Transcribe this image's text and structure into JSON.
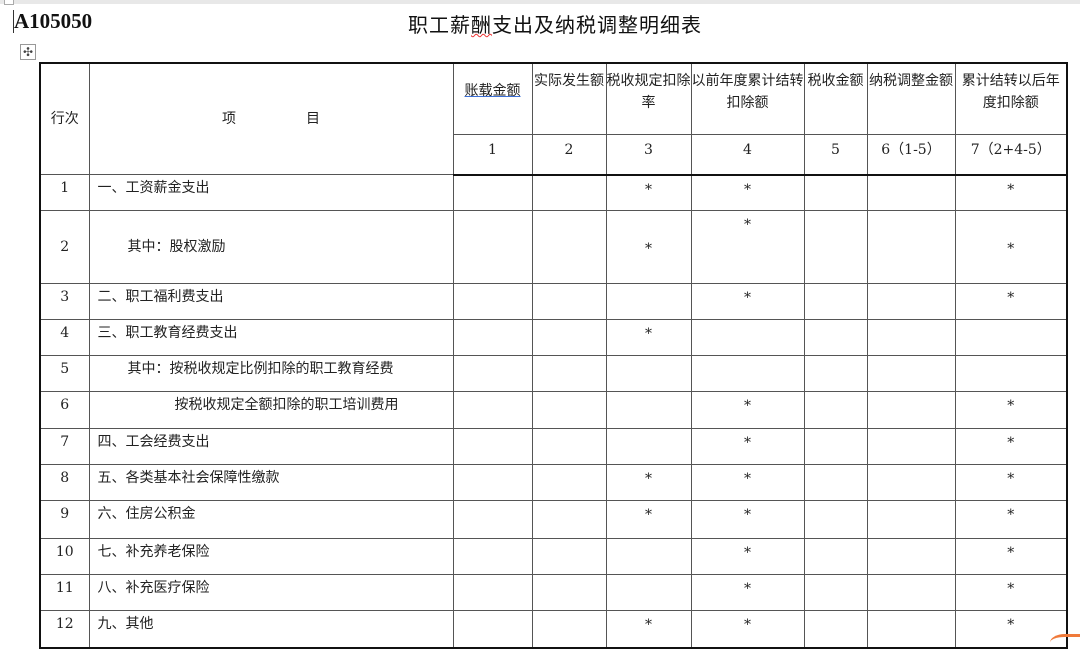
{
  "doc": {
    "code": "A105050",
    "title_pre": "职工薪",
    "title_err": "酬",
    "title_post": "支出及纳税调整明细表",
    "move_handle": "✣"
  },
  "headers": {
    "row_no": "行次",
    "item": "项　　　　　目",
    "cols": [
      "账载金额",
      "实际发生额",
      "税收规定扣除率",
      "以前年度累计结转扣除额",
      "税收金额",
      "纳税调整金额",
      "累计结转以后年度扣除额"
    ],
    "col_nums": [
      "1",
      "2",
      "3",
      "4",
      "5",
      "6（1-5）",
      "7（2+4-5）"
    ]
  },
  "rows": [
    {
      "no": "1",
      "item": "一、工资薪金支出",
      "cells": [
        "",
        "",
        "*",
        "*",
        "",
        "",
        "*"
      ]
    },
    {
      "no": "2",
      "item": "其中：股权激励",
      "cells": [
        "",
        "",
        "*",
        "*",
        "",
        "",
        "*"
      ]
    },
    {
      "no": "3",
      "item": "二、职工福利费支出",
      "cells": [
        "",
        "",
        "",
        "*",
        "",
        "",
        "*"
      ]
    },
    {
      "no": "4",
      "item": "三、职工教育经费支出",
      "cells": [
        "",
        "",
        "*",
        "",
        "",
        "",
        ""
      ]
    },
    {
      "no": "5",
      "item": "其中：按税收规定比例扣除的职工教育经费",
      "cells": [
        "",
        "",
        "",
        "",
        "",
        "",
        ""
      ]
    },
    {
      "no": "6",
      "item": "按税收规定全额扣除的职工培训费用",
      "cells": [
        "",
        "",
        "",
        "*",
        "",
        "",
        "*"
      ]
    },
    {
      "no": "7",
      "item": "四、工会经费支出",
      "cells": [
        "",
        "",
        "",
        "*",
        "",
        "",
        "*"
      ]
    },
    {
      "no": "8",
      "item": "五、各类基本社会保障性缴款",
      "cells": [
        "",
        "",
        "*",
        "*",
        "",
        "",
        "*"
      ]
    },
    {
      "no": "9",
      "item": "六、住房公积金",
      "cells": [
        "",
        "",
        "*",
        "*",
        "",
        "",
        "*"
      ]
    },
    {
      "no": "10",
      "item": "七、补充养老保险",
      "cells": [
        "",
        "",
        "",
        "*",
        "",
        "",
        "*"
      ]
    },
    {
      "no": "11",
      "item": "八、补充医疗保险",
      "cells": [
        "",
        "",
        "",
        "*",
        "",
        "",
        "*"
      ]
    },
    {
      "no": "12",
      "item": "九、其他",
      "cells": [
        "",
        "",
        "*",
        "*",
        "",
        "",
        "*"
      ]
    }
  ]
}
